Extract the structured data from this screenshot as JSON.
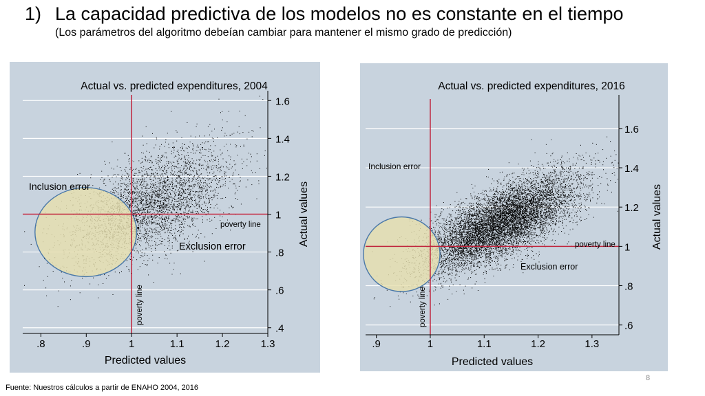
{
  "slide": {
    "title_number": "1)",
    "title": "La capacidad predictiva de los modelos no es constante en el tiempo",
    "subtitle": "(Los parámetros del algoritmo debeían cambiar para mantener el mismo grado de predicción)",
    "source": "Fuente: Nuestros cálculos a partir de ENAHO 2004, 2016",
    "page_number": "8"
  },
  "colors": {
    "panel_bg": "#c8d3de",
    "gridline": "#ffffff",
    "poverty_line": "#c0243c",
    "ellipse_fill": "#e6dfae",
    "ellipse_stroke": "#4a78a8",
    "points": "#000000"
  },
  "chart_data": [
    {
      "type": "scatter",
      "title": "Actual vs. predicted expenditures, 2004",
      "xlabel": "Predicted values",
      "ylabel": "Actual values",
      "xlim": [
        0.76,
        1.3
      ],
      "ylim": [
        0.37,
        1.63
      ],
      "xticks": [
        0.8,
        0.9,
        1,
        1.1,
        1.2,
        1.3
      ],
      "xtick_labels": [
        ".8",
        ".9",
        "1",
        "1.1",
        "1.2",
        "1.3"
      ],
      "yticks": [
        0.4,
        0.6,
        0.8,
        1,
        1.2,
        1.4,
        1.6
      ],
      "ytick_labels": [
        ".4",
        ".6",
        ".8",
        "1",
        "1.2",
        "1.4",
        "1.6"
      ],
      "poverty_line": {
        "x": 1,
        "y": 1,
        "label_h": "poverty line",
        "label_v": "poverty line"
      },
      "annotations": {
        "inclusion": "Inclusion error",
        "exclusion": "Exclusion error"
      },
      "highlight_ellipse": {
        "cx": 0.899,
        "cy": 0.905,
        "rx": 0.112,
        "ry": 0.235
      },
      "point_cloud": {
        "n_points": 3800,
        "mean_x": 1.04,
        "mean_y": 1.05,
        "sd_x": 0.09,
        "sd_y": 0.16,
        "corr": 0.6
      }
    },
    {
      "type": "scatter",
      "title": "Actual vs. predicted expenditures, 2016",
      "xlabel": "Predicted values",
      "ylabel": "Actual values",
      "xlim": [
        0.88,
        1.35
      ],
      "ylim": [
        0.55,
        1.75
      ],
      "xticks": [
        0.9,
        1,
        1.1,
        1.2,
        1.3
      ],
      "xtick_labels": [
        ".9",
        "1",
        "1.1",
        "1.2",
        "1.3"
      ],
      "yticks": [
        0.6,
        0.8,
        1,
        1.2,
        1.4,
        1.6
      ],
      "ytick_labels": [
        ".6",
        ".8",
        "1",
        "1.2",
        "1.4",
        "1.6"
      ],
      "poverty_line": {
        "x": 1,
        "y": 1,
        "label_h": "poverty line",
        "label_v": "poverty line"
      },
      "annotations": {
        "inclusion": "Inclusion error",
        "exclusion": "Exclusion error"
      },
      "highlight_ellipse": {
        "cx": 0.947,
        "cy": 0.96,
        "rx": 0.071,
        "ry": 0.19
      },
      "point_cloud": {
        "n_points": 9000,
        "mean_x": 1.13,
        "mean_y": 1.12,
        "sd_x": 0.07,
        "sd_y": 0.12,
        "corr": 0.7
      }
    }
  ]
}
